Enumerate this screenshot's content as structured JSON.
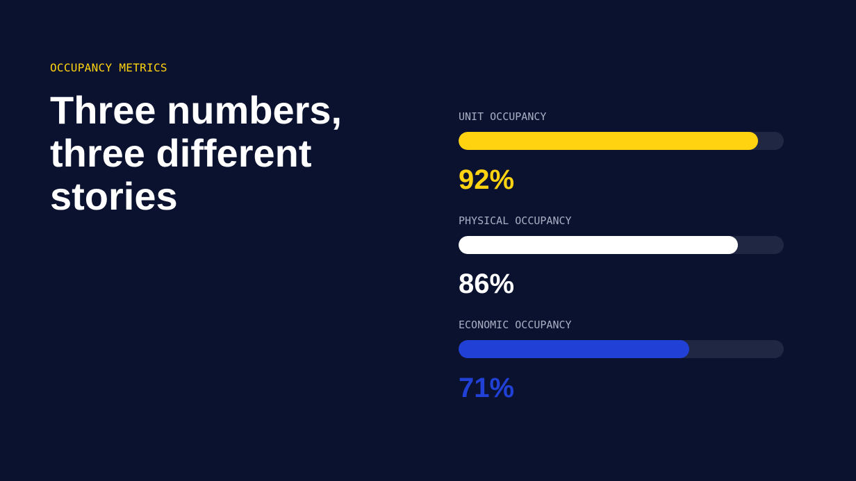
{
  "eyebrow": "OCCUPANCY METRICS",
  "headline": "Three numbers, three different stories",
  "track_color": "#1f2742",
  "chart_data": {
    "type": "bar",
    "orientation": "horizontal",
    "xlim": [
      0,
      100
    ],
    "bars": [
      {
        "label": "UNIT OCCUPANCY",
        "value": 92,
        "display": "92%",
        "color": "#ffd30f"
      },
      {
        "label": "PHYSICAL OCCUPANCY",
        "value": 86,
        "display": "86%",
        "color": "#ffffff"
      },
      {
        "label": "ECONOMIC OCCUPANCY",
        "value": 71,
        "display": "71%",
        "color": "#2140d6"
      }
    ]
  }
}
